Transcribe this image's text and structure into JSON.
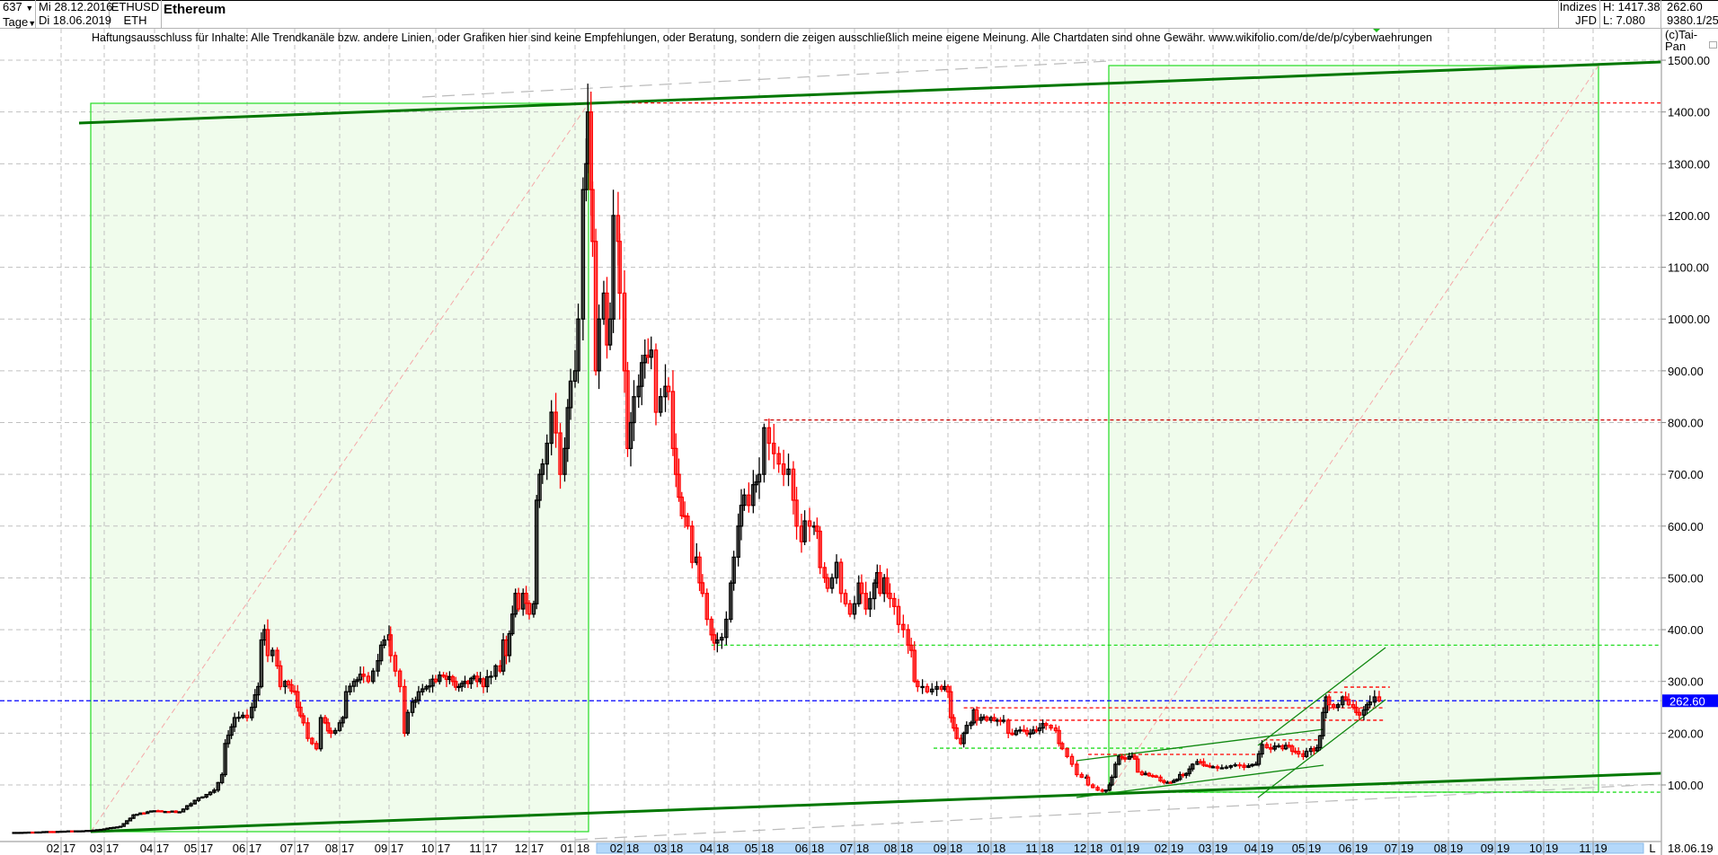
{
  "header": {
    "bar_count": "637",
    "period": "Tage",
    "start_date": "Mi 28.12.2016",
    "end_date": "Di 18.06.2019",
    "symbol": "ETHUSD",
    "short": "ETH",
    "title": "Ethereum",
    "group": "Indizes",
    "exchange": "JFD",
    "high": "H: 1417.38",
    "low": "L: 7.080",
    "last": "262.60",
    "volume_info": "9380.1/25",
    "dropdown_icon": "triangle-down"
  },
  "disclaimer": "Haftungsausschluss für Inhalte: Alle Trendkanäle bzw. andere Linien, oder Grafiken hier sind keine Empfehlungen, oder Beratung, sondern die zeigen ausschließlich meine eigene Meinung. Alle Chartdaten sind ohne Gewähr.  www.wikifolio.com/de/de/p/cyberwaehrungen",
  "copyright": "(c)Tai-Pan",
  "axis_footer": {
    "scale_button": "L",
    "last_date": "18.06.19"
  },
  "colors": {
    "up": "#000000",
    "down": "#ff0000",
    "last_price": "#0000ff",
    "channel": "#007700",
    "zone_fill": "#f0fcec",
    "zone_border": "#22dd22",
    "scroll_highlight": "#b4d8fa"
  },
  "chart_data": {
    "type": "candlestick",
    "title": "Ethereum",
    "ylim": [
      0,
      1550
    ],
    "grid": true,
    "y_ticks": [
      "1500.00",
      "1400.00",
      "1300.00",
      "1200.00",
      "1100.00",
      "1000.00",
      "900.00",
      "800.00",
      "700.00",
      "600.00",
      "500.00",
      "400.00",
      "300.00",
      "200.00",
      "100.00"
    ],
    "x_ticks": [
      "02 17",
      "03 17",
      "04 17",
      "05 17",
      "06 17",
      "07 17",
      "08 17",
      "09 17",
      "10 17",
      "11 17",
      "12 17",
      "01 18",
      "02 18",
      "03 18",
      "04 18",
      "05 18",
      "06 18",
      "07 18",
      "08 18",
      "09 18",
      "10 18",
      "11 18",
      "12 18",
      "01 19",
      "02 19",
      "03 19",
      "04 19",
      "05 19",
      "06 19",
      "07 19",
      "08 19",
      "09 19",
      "10 19",
      "11 19"
    ],
    "last_price_label": "262.60",
    "last_price": 262.6,
    "levels": [
      {
        "price": 1417.38,
        "color": "#ff0000",
        "from": "2018-01-09",
        "to": null
      },
      {
        "price": 805,
        "color": "#cc0000",
        "from": "2018-05-04",
        "to": null
      },
      {
        "price": 370,
        "color": "#22dd22",
        "from": "2018-03-30",
        "to": null
      },
      {
        "price": 249,
        "color": "#ff0000",
        "from": "2018-09-12",
        "to": "2019-06-22"
      },
      {
        "price": 225,
        "color": "#ff0000",
        "from": "2018-10-12",
        "to": "2019-06-22"
      },
      {
        "price": 171,
        "color": "#22dd22",
        "from": "2018-08-23",
        "to": "2019-02-11"
      },
      {
        "price": 159,
        "color": "#ff0000",
        "from": "2018-12-01",
        "to": "2019-04-01"
      },
      {
        "price": 187,
        "color": "#ff0000",
        "from": "2019-04-04",
        "to": "2019-05-10"
      },
      {
        "price": 279,
        "color": "#ff0000",
        "from": "2019-05-15",
        "to": "2019-05-25"
      },
      {
        "price": 289,
        "color": "#ff0000",
        "from": "2019-05-26",
        "to": "2019-06-25"
      },
      {
        "price": 86,
        "color": "#22dd22",
        "from": "2018-12-19",
        "to": null
      }
    ],
    "closes": [
      [
        "2016-12-28",
        8
      ],
      [
        "2017-01-15",
        9
      ],
      [
        "2017-02-01",
        10.5
      ],
      [
        "2017-02-20",
        12
      ],
      [
        "2017-03-01",
        15
      ],
      [
        "2017-03-11",
        20
      ],
      [
        "2017-03-19",
        42
      ],
      [
        "2017-04-01",
        50
      ],
      [
        "2017-04-18",
        48
      ],
      [
        "2017-05-01",
        75
      ],
      [
        "2017-05-11",
        90
      ],
      [
        "2017-05-16",
        120
      ],
      [
        "2017-05-18",
        180
      ],
      [
        "2017-05-24",
        230
      ],
      [
        "2017-06-01",
        230
      ],
      [
        "2017-06-04",
        250
      ],
      [
        "2017-06-08",
        290
      ],
      [
        "2017-06-10",
        380
      ],
      [
        "2017-06-12",
        400
      ],
      [
        "2017-06-14",
        350
      ],
      [
        "2017-06-17",
        360
      ],
      [
        "2017-06-20",
        330
      ],
      [
        "2017-06-22",
        290
      ],
      [
        "2017-06-25",
        300
      ],
      [
        "2017-07-01",
        280
      ],
      [
        "2017-07-03",
        250
      ],
      [
        "2017-07-07",
        220
      ],
      [
        "2017-07-10",
        190
      ],
      [
        "2017-07-13",
        180
      ],
      [
        "2017-07-16",
        170
      ],
      [
        "2017-07-19",
        230
      ],
      [
        "2017-07-22",
        220
      ],
      [
        "2017-07-26",
        200
      ],
      [
        "2017-08-01",
        220
      ],
      [
        "2017-08-03",
        230
      ],
      [
        "2017-08-05",
        280
      ],
      [
        "2017-08-10",
        300
      ],
      [
        "2017-08-16",
        310
      ],
      [
        "2017-08-19",
        300
      ],
      [
        "2017-08-22",
        320
      ],
      [
        "2017-08-25",
        340
      ],
      [
        "2017-08-29",
        380
      ],
      [
        "2017-09-01",
        390
      ],
      [
        "2017-09-02",
        350
      ],
      [
        "2017-09-05",
        320
      ],
      [
        "2017-09-08",
        290
      ],
      [
        "2017-09-11",
        200
      ],
      [
        "2017-09-13",
        240
      ],
      [
        "2017-09-16",
        260
      ],
      [
        "2017-09-20",
        280
      ],
      [
        "2017-09-25",
        290
      ],
      [
        "2017-10-01",
        300
      ],
      [
        "2017-10-06",
        310
      ],
      [
        "2017-10-12",
        300
      ],
      [
        "2017-10-16",
        290
      ],
      [
        "2017-10-20",
        300
      ],
      [
        "2017-10-26",
        310
      ],
      [
        "2017-11-01",
        290
      ],
      [
        "2017-11-06",
        310
      ],
      [
        "2017-11-09",
        330
      ],
      [
        "2017-11-12",
        320
      ],
      [
        "2017-11-14",
        380
      ],
      [
        "2017-11-16",
        350
      ],
      [
        "2017-11-20",
        430
      ],
      [
        "2017-11-22",
        470
      ],
      [
        "2017-11-24",
        440
      ],
      [
        "2017-11-27",
        470
      ],
      [
        "2017-12-01",
        430
      ],
      [
        "2017-12-04",
        450
      ],
      [
        "2017-12-06",
        650
      ],
      [
        "2017-12-08",
        700
      ],
      [
        "2017-12-10",
        720
      ],
      [
        "2017-12-13",
        760
      ],
      [
        "2017-12-16",
        820
      ],
      [
        "2017-12-19",
        780
      ],
      [
        "2017-12-22",
        700
      ],
      [
        "2017-12-25",
        750
      ],
      [
        "2017-12-29",
        880
      ],
      [
        "2018-01-01",
        900
      ],
      [
        "2018-01-03",
        1000
      ],
      [
        "2018-01-06",
        1250
      ],
      [
        "2018-01-08",
        1300
      ],
      [
        "2018-01-09",
        1400
      ],
      [
        "2018-01-11",
        1250
      ],
      [
        "2018-01-12",
        1150
      ],
      [
        "2018-01-14",
        900
      ],
      [
        "2018-01-16",
        1000
      ],
      [
        "2018-01-19",
        1050
      ],
      [
        "2018-01-21",
        950
      ],
      [
        "2018-01-23",
        1000
      ],
      [
        "2018-01-25",
        1200
      ],
      [
        "2018-01-28",
        1150
      ],
      [
        "2018-01-29",
        1050
      ],
      [
        "2018-02-01",
        900
      ],
      [
        "2018-02-03",
        750
      ],
      [
        "2018-02-05",
        800
      ],
      [
        "2018-02-07",
        850
      ],
      [
        "2018-02-10",
        870
      ],
      [
        "2018-02-14",
        930
      ],
      [
        "2018-02-18",
        940
      ],
      [
        "2018-02-21",
        820
      ],
      [
        "2018-02-24",
        850
      ],
      [
        "2018-02-27",
        870
      ],
      [
        "2018-03-01",
        860
      ],
      [
        "2018-03-04",
        750
      ],
      [
        "2018-03-06",
        700
      ],
      [
        "2018-03-10",
        620
      ],
      [
        "2018-03-14",
        600
      ],
      [
        "2018-03-17",
        530
      ],
      [
        "2018-03-20",
        540
      ],
      [
        "2018-03-24",
        470
      ],
      [
        "2018-03-27",
        420
      ],
      [
        "2018-03-30",
        390
      ],
      [
        "2018-04-03",
        380
      ],
      [
        "2018-04-06",
        385
      ],
      [
        "2018-04-09",
        420
      ],
      [
        "2018-04-12",
        490
      ],
      [
        "2018-04-14",
        540
      ],
      [
        "2018-04-17",
        600
      ],
      [
        "2018-04-21",
        660
      ],
      [
        "2018-04-24",
        640
      ],
      [
        "2018-04-27",
        680
      ],
      [
        "2018-05-01",
        700
      ],
      [
        "2018-05-04",
        790
      ],
      [
        "2018-05-07",
        760
      ],
      [
        "2018-05-10",
        740
      ],
      [
        "2018-05-13",
        720
      ],
      [
        "2018-05-16",
        700
      ],
      [
        "2018-05-19",
        710
      ],
      [
        "2018-05-22",
        650
      ],
      [
        "2018-05-24",
        600
      ],
      [
        "2018-05-27",
        570
      ],
      [
        "2018-05-29",
        610
      ],
      [
        "2018-06-01",
        600
      ],
      [
        "2018-06-04",
        600
      ],
      [
        "2018-06-06",
        590
      ],
      [
        "2018-06-08",
        520
      ],
      [
        "2018-06-11",
        500
      ],
      [
        "2018-06-13",
        480
      ],
      [
        "2018-06-16",
        500
      ],
      [
        "2018-06-19",
        530
      ],
      [
        "2018-06-22",
        470
      ],
      [
        "2018-06-25",
        450
      ],
      [
        "2018-06-28",
        430
      ],
      [
        "2018-07-01",
        450
      ],
      [
        "2018-07-04",
        490
      ],
      [
        "2018-07-06",
        470
      ],
      [
        "2018-07-09",
        440
      ],
      [
        "2018-07-12",
        460
      ],
      [
        "2018-07-15",
        490
      ],
      [
        "2018-07-17",
        510
      ],
      [
        "2018-07-19",
        470
      ],
      [
        "2018-07-22",
        500
      ],
      [
        "2018-07-24",
        470
      ],
      [
        "2018-07-26",
        460
      ],
      [
        "2018-08-01",
        410
      ],
      [
        "2018-08-04",
        400
      ],
      [
        "2018-08-07",
        370
      ],
      [
        "2018-08-09",
        360
      ],
      [
        "2018-08-11",
        300
      ],
      [
        "2018-08-13",
        290
      ],
      [
        "2018-08-16",
        290
      ],
      [
        "2018-08-19",
        280
      ],
      [
        "2018-08-22",
        285
      ],
      [
        "2018-08-25",
        290
      ],
      [
        "2018-08-28",
        285
      ],
      [
        "2018-08-30",
        290
      ],
      [
        "2018-09-01",
        280
      ],
      [
        "2018-09-03",
        230
      ],
      [
        "2018-09-05",
        210
      ],
      [
        "2018-09-07",
        190
      ],
      [
        "2018-09-10",
        180
      ],
      [
        "2018-09-12",
        200
      ],
      [
        "2018-09-14",
        215
      ],
      [
        "2018-09-17",
        220
      ],
      [
        "2018-09-19",
        245
      ],
      [
        "2018-09-21",
        225
      ],
      [
        "2018-09-24",
        230
      ],
      [
        "2018-09-28",
        225
      ],
      [
        "2018-10-01",
        230
      ],
      [
        "2018-10-05",
        225
      ],
      [
        "2018-10-09",
        225
      ],
      [
        "2018-10-12",
        200
      ],
      [
        "2018-10-17",
        205
      ],
      [
        "2018-10-22",
        205
      ],
      [
        "2018-10-26",
        200
      ],
      [
        "2018-10-30",
        205
      ],
      [
        "2018-11-01",
        210
      ],
      [
        "2018-11-05",
        215
      ],
      [
        "2018-11-08",
        210
      ],
      [
        "2018-11-11",
        205
      ],
      [
        "2018-11-13",
        180
      ],
      [
        "2018-11-15",
        170
      ],
      [
        "2018-11-18",
        155
      ],
      [
        "2018-11-21",
        140
      ],
      [
        "2018-11-24",
        120
      ],
      [
        "2018-11-27",
        115
      ],
      [
        "2018-11-30",
        115
      ],
      [
        "2018-12-01",
        100
      ],
      [
        "2018-12-05",
        95
      ],
      [
        "2018-12-09",
        90
      ],
      [
        "2018-12-13",
        88
      ],
      [
        "2018-12-16",
        90
      ],
      [
        "2018-12-19",
        100
      ],
      [
        "2018-12-21",
        115
      ],
      [
        "2018-12-24",
        140
      ],
      [
        "2018-12-27",
        155
      ],
      [
        "2019-01-01",
        150
      ],
      [
        "2019-01-04",
        155
      ],
      [
        "2019-01-08",
        150
      ],
      [
        "2019-01-10",
        125
      ],
      [
        "2019-01-13",
        120
      ],
      [
        "2019-01-18",
        118
      ],
      [
        "2019-01-23",
        115
      ],
      [
        "2019-01-26",
        108
      ],
      [
        "2019-01-31",
        105
      ],
      [
        "2019-02-04",
        108
      ],
      [
        "2019-02-08",
        120
      ],
      [
        "2019-02-12",
        122
      ],
      [
        "2019-02-16",
        140
      ],
      [
        "2019-02-19",
        145
      ],
      [
        "2019-02-23",
        138
      ],
      [
        "2019-02-27",
        135
      ],
      [
        "2019-03-01",
        135
      ],
      [
        "2019-03-07",
        133
      ],
      [
        "2019-03-13",
        137
      ],
      [
        "2019-03-19",
        138
      ],
      [
        "2019-03-25",
        137
      ],
      [
        "2019-03-30",
        140
      ],
      [
        "2019-04-01",
        160
      ],
      [
        "2019-04-03",
        178
      ],
      [
        "2019-04-06",
        172
      ],
      [
        "2019-04-11",
        175
      ],
      [
        "2019-04-16",
        170
      ],
      [
        "2019-04-20",
        175
      ],
      [
        "2019-04-26",
        160
      ],
      [
        "2019-04-29",
        155
      ],
      [
        "2019-05-01",
        165
      ],
      [
        "2019-05-04",
        170
      ],
      [
        "2019-05-08",
        172
      ],
      [
        "2019-05-10",
        195
      ],
      [
        "2019-05-12",
        240
      ],
      [
        "2019-05-14",
        270
      ],
      [
        "2019-05-16",
        255
      ],
      [
        "2019-05-19",
        250
      ],
      [
        "2019-05-22",
        255
      ],
      [
        "2019-05-25",
        270
      ],
      [
        "2019-05-27",
        265
      ],
      [
        "2019-05-29",
        255
      ],
      [
        "2019-06-01",
        250
      ],
      [
        "2019-06-03",
        240
      ],
      [
        "2019-06-05",
        235
      ],
      [
        "2019-06-08",
        245
      ],
      [
        "2019-06-10",
        255
      ],
      [
        "2019-06-12",
        260
      ],
      [
        "2019-06-15",
        270
      ],
      [
        "2019-06-18",
        262.6
      ]
    ]
  }
}
